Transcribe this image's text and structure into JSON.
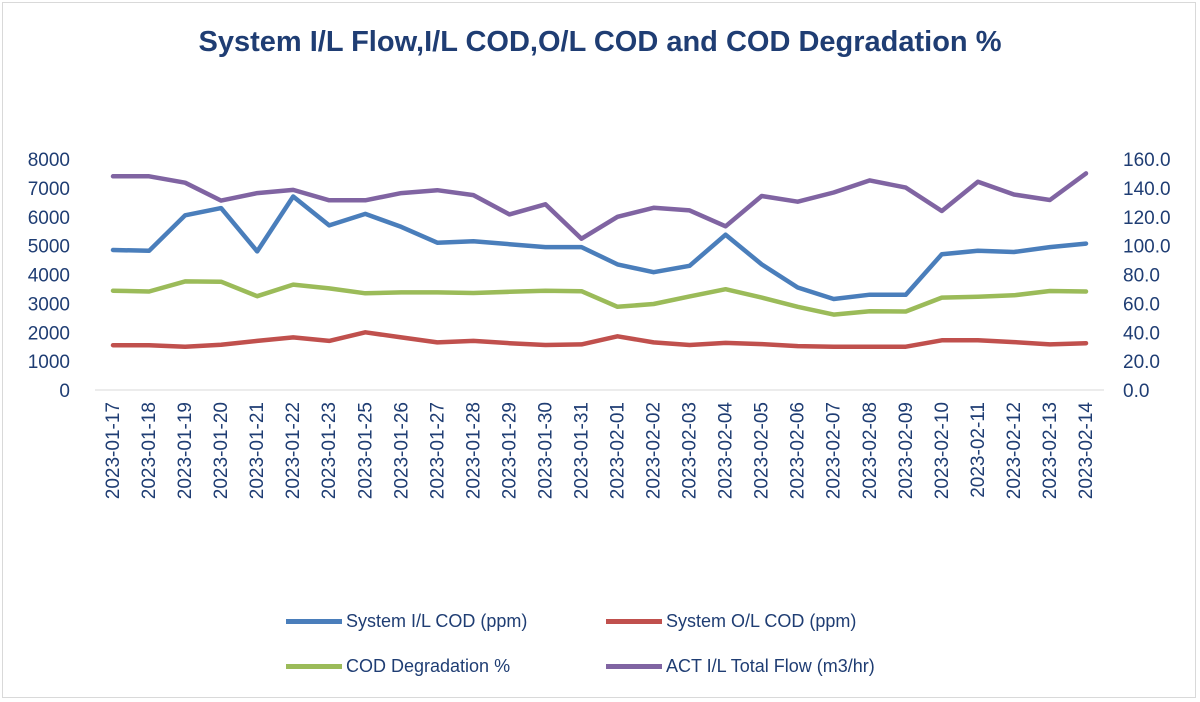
{
  "chart_data": {
    "type": "line",
    "title": "System I/L Flow,I/L COD,O/L COD and COD Degradation %",
    "categories": [
      "2023-01-17",
      "2023-01-18",
      "2023-01-19",
      "2023-01-20",
      "2023-01-21",
      "2023-01-22",
      "2023-01-23",
      "2023-01-25",
      "2023-01-26",
      "2023-01-27",
      "2023-01-28",
      "2023-01-29",
      "2023-01-30",
      "2023-01-31",
      "2023-02-01",
      "2023-02-02",
      "2023-02-03",
      "2023-02-04",
      "2023-02-05",
      "2023-02-06",
      "2023-02-07",
      "2023-02-08",
      "2023-02-09",
      "2023-02-10",
      "2023-02-11",
      "2023-02-12",
      "2023-02-13",
      "2023-02-14"
    ],
    "y_left": {
      "ylim": [
        0,
        8000
      ],
      "ticks": [
        "0",
        "1000",
        "2000",
        "3000",
        "4000",
        "5000",
        "6000",
        "7000",
        "8000"
      ]
    },
    "y_right": {
      "ylim": [
        0,
        160
      ],
      "ticks": [
        "0.0",
        "20.0",
        "40.0",
        "60.0",
        "80.0",
        "100.0",
        "120.0",
        "140.0",
        "160.0"
      ]
    },
    "series": [
      {
        "name": "System I/L COD (ppm)",
        "axis": "left",
        "color": "#4a7ebb",
        "values": [
          4850,
          4820,
          6050,
          6300,
          4800,
          6700,
          5700,
          6100,
          5650,
          5100,
          5150,
          5050,
          4950,
          4950,
          4350,
          4080,
          4300,
          5380,
          4350,
          3550,
          3150,
          3300,
          3300,
          4700,
          4820,
          4780,
          4950,
          5070
        ]
      },
      {
        "name": "System O/L COD (ppm)",
        "axis": "left",
        "color": "#c0504d",
        "values": [
          1550,
          1550,
          1500,
          1570,
          1700,
          1820,
          1700,
          2000,
          1820,
          1650,
          1700,
          1620,
          1560,
          1580,
          1860,
          1650,
          1560,
          1630,
          1590,
          1520,
          1500,
          1500,
          1500,
          1720,
          1720,
          1660,
          1580,
          1620
        ]
      },
      {
        "name": "COD Degradation %",
        "axis": "right",
        "color": "#9bbb59",
        "values": [
          68.8,
          68.2,
          75.2,
          75.0,
          65.0,
          73.0,
          70.4,
          67.0,
          67.6,
          67.6,
          67.2,
          68.0,
          68.8,
          68.4,
          57.6,
          59.6,
          64.8,
          69.8,
          64.0,
          57.6,
          52.2,
          54.6,
          54.4,
          64.0,
          64.6,
          65.6,
          68.6,
          68.2
        ]
      },
      {
        "name": "ACT I/L Total Flow (m3/hr)",
        "axis": "right",
        "color": "#8064a2",
        "values": [
          148.0,
          148.0,
          143.6,
          131.2,
          136.4,
          138.6,
          131.4,
          131.4,
          136.4,
          138.4,
          135.0,
          121.6,
          128.6,
          104.8,
          120.0,
          126.2,
          124.4,
          113.4,
          134.4,
          130.4,
          136.8,
          145.2,
          140.2,
          124.0,
          144.2,
          135.4,
          131.6,
          150.0
        ]
      }
    ],
    "legend_position": "bottom"
  }
}
